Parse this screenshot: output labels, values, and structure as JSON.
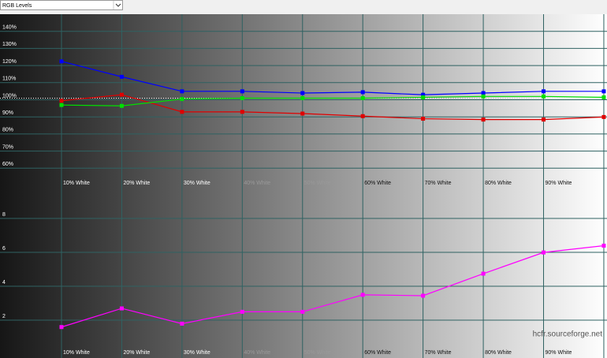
{
  "dropdown": "RGB Levels",
  "watermark": "hcfr.sourceforge.net",
  "chart_data": [
    {
      "type": "line",
      "categories": [
        "10% White",
        "20% White",
        "30% White",
        "40% White",
        "50% White",
        "60% White",
        "70% White",
        "80% White",
        "90% White",
        null
      ],
      "series": [
        {
          "color": "#0000ff",
          "values": [
            121.5,
            112.5,
            104,
            104,
            103,
            103.5,
            102,
            103,
            104,
            104
          ]
        },
        {
          "color": "#e00000",
          "values": [
            98.5,
            102,
            92,
            92,
            91,
            89.5,
            88,
            87.5,
            87.5,
            89
          ]
        },
        {
          "color": "#00e000",
          "values": [
            96,
            95.5,
            99.5,
            100,
            100,
            100,
            100.5,
            101,
            101,
            100.5
          ]
        }
      ],
      "reference_line": 100,
      "ylim": [
        50,
        150
      ],
      "yticks": [
        {
          "value": 60,
          "label": "60%"
        },
        {
          "value": 70,
          "label": "70%"
        },
        {
          "value": 80,
          "label": "80%"
        },
        {
          "value": 90,
          "label": "90%"
        },
        {
          "value": 100,
          "label": "100%"
        },
        {
          "value": 110,
          "label": "110%"
        },
        {
          "value": 120,
          "label": "120%"
        },
        {
          "value": 130,
          "label": "130%"
        },
        {
          "value": 140,
          "label": "140%"
        }
      ],
      "grid": true
    },
    {
      "type": "line",
      "categories": [
        "10% White",
        "20% White",
        "30% White",
        "40% White",
        "50% White",
        "60% White",
        "70% White",
        "80% White",
        "90% White",
        null
      ],
      "series": [
        {
          "color": "#ff00ff",
          "values": [
            1.5,
            2.6,
            1.7,
            2.4,
            2.4,
            3.4,
            3.35,
            4.65,
            5.9,
            6.3
          ]
        }
      ],
      "ylim": [
        0,
        10
      ],
      "yticks": [
        2,
        4,
        6,
        8
      ],
      "grid": true
    }
  ]
}
